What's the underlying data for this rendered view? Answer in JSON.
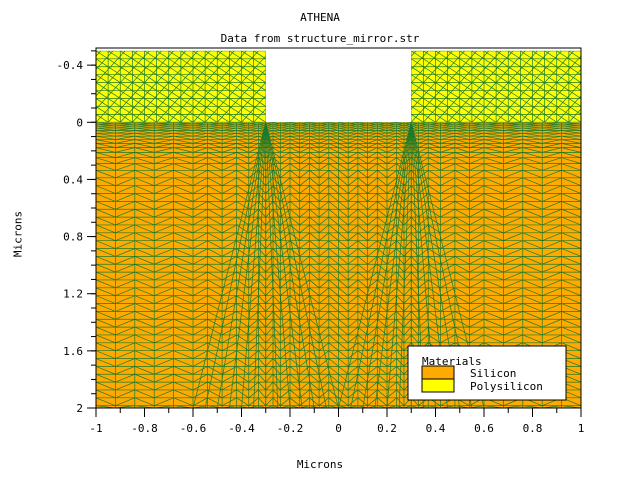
{
  "window": {
    "title": "ATHENA",
    "subtitle": "Data from structure_mirror.str"
  },
  "chart_data": {
    "type": "mesh-structure",
    "title": "ATHENA",
    "subtitle": "Data from structure_mirror.str",
    "xlabel": "Microns",
    "ylabel": "Microns",
    "xlim": [
      -1,
      1
    ],
    "ylim": [
      -0.52,
      2
    ],
    "y_inverted": true,
    "x_ticks": [
      "-1",
      "-0.8",
      "-0.6",
      "-0.4",
      "-0.2",
      "0",
      "0.2",
      "0.4",
      "0.6",
      "0.8",
      "1"
    ],
    "x_tick_values": [
      -1,
      -0.8,
      -0.6,
      -0.4,
      -0.2,
      0,
      0.2,
      0.4,
      0.6,
      0.8,
      1
    ],
    "y_ticks": [
      "-0.4",
      "0",
      "0.4",
      "0.8",
      "1.2",
      "1.6",
      "2"
    ],
    "y_tick_values": [
      -0.4,
      0,
      0.4,
      0.8,
      1.2,
      1.6,
      2
    ],
    "regions": [
      {
        "material": "Silicon",
        "x": [
          -1,
          1
        ],
        "y": [
          0,
          2
        ]
      },
      {
        "material": "Polysilicon",
        "x": [
          -1,
          -0.3
        ],
        "y": [
          -0.5,
          0
        ]
      },
      {
        "material": "Polysilicon",
        "x": [
          0.3,
          1
        ],
        "y": [
          -0.5,
          0
        ]
      }
    ],
    "legend": {
      "title": "Materials",
      "placement": "bottom-right",
      "items": [
        {
          "label": "Silicon",
          "color": "#ffaa00"
        },
        {
          "label": "Polysilicon",
          "color": "#ffff00"
        }
      ]
    },
    "colors": {
      "silicon": "#ffaa00",
      "polysilicon": "#ffff00",
      "mesh": "#1b7a2e"
    }
  }
}
